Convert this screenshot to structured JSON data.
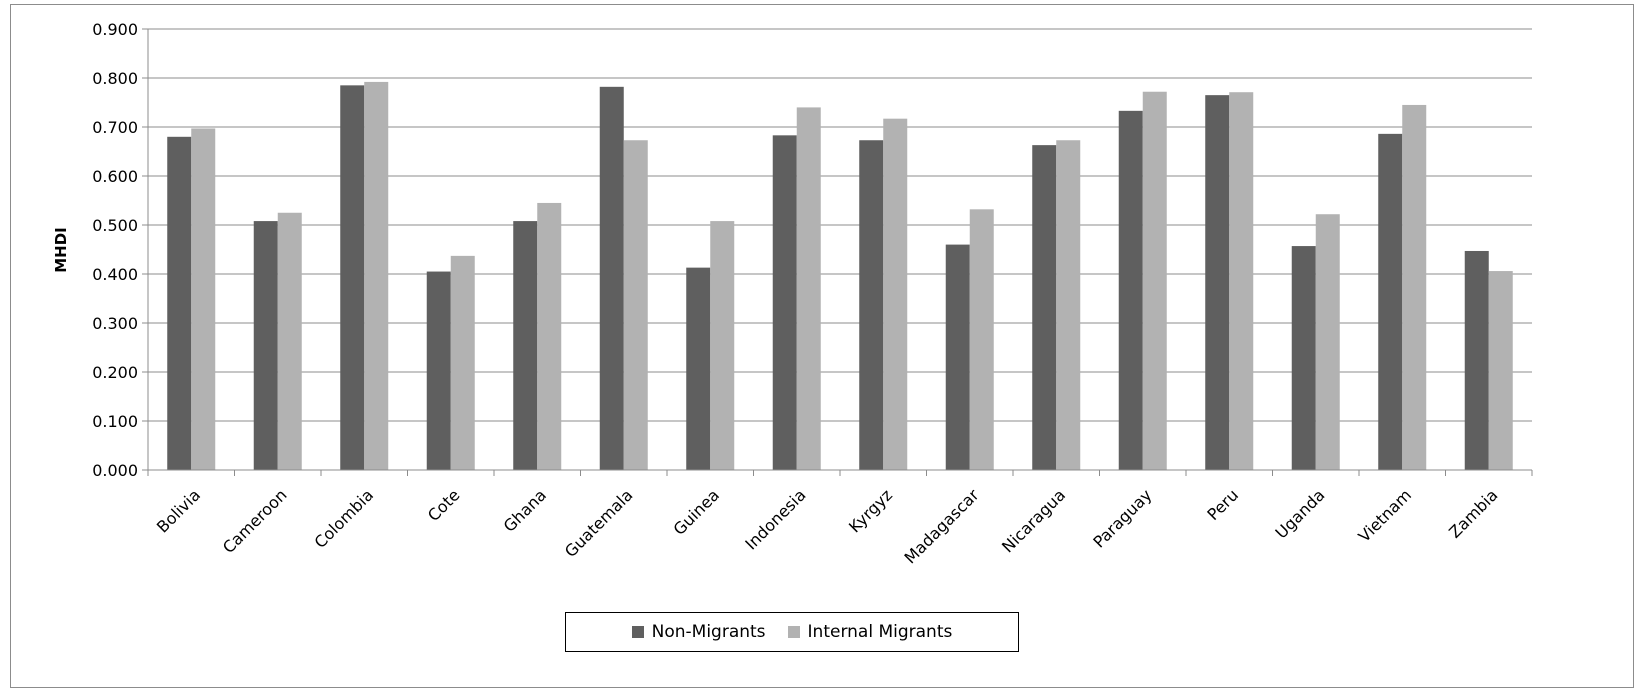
{
  "chart_data": {
    "type": "bar",
    "ylabel": "MHDI",
    "xlabel": "",
    "ylim": [
      0,
      0.9
    ],
    "yticks": [
      "0.000",
      "0.100",
      "0.200",
      "0.300",
      "0.400",
      "0.500",
      "0.600",
      "0.700",
      "0.800",
      "0.900"
    ],
    "grid": true,
    "legend_position": "bottom",
    "categories": [
      "Bolivia",
      "Cameroon",
      "Colombia",
      "Cote",
      "Ghana",
      "Guatemala",
      "Guinea",
      "Indonesia",
      "Kyrgyz",
      "Madagascar",
      "Nicaragua",
      "Paraguay",
      "Peru",
      "Uganda",
      "Vietnam",
      "Zambia"
    ],
    "series": [
      {
        "name": "Non-Migrants",
        "color": "#5f5f5f",
        "values": [
          0.68,
          0.508,
          0.785,
          0.405,
          0.508,
          0.782,
          0.413,
          0.683,
          0.673,
          0.46,
          0.663,
          0.733,
          0.765,
          0.457,
          0.686,
          0.447
        ]
      },
      {
        "name": "Internal Migrants",
        "color": "#b2b2b2",
        "values": [
          0.697,
          0.525,
          0.792,
          0.437,
          0.545,
          0.673,
          0.508,
          0.74,
          0.717,
          0.532,
          0.673,
          0.772,
          0.771,
          0.522,
          0.745,
          0.406
        ]
      }
    ]
  }
}
